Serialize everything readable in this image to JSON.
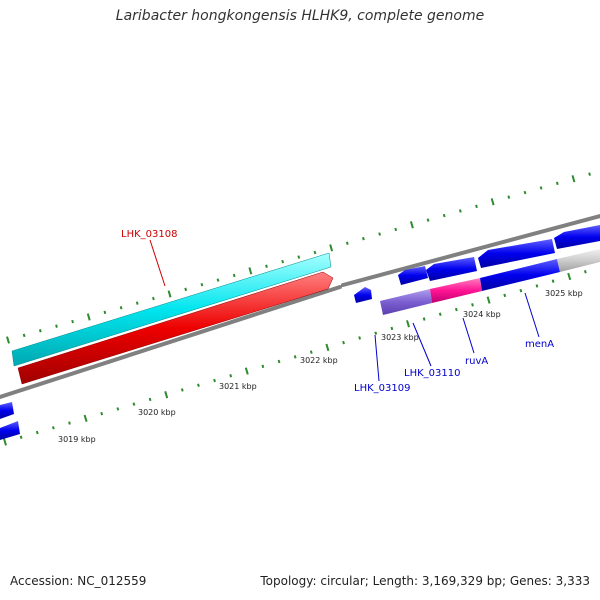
{
  "title": "Laribacter hongkongensis HLHK9, complete genome",
  "footer": {
    "accession": "Accession: NC_012559",
    "stats": "Topology: circular; Length: 3,169,329 bp; Genes: 3,333"
  },
  "scale_labels": [
    "3019 kbp",
    "3020 kbp",
    "3021 kbp",
    "3022 kbp",
    "3023 kbp",
    "3024 kbp",
    "3025 kbp"
  ],
  "gene_labels": {
    "lhk_03108": "LHK_03108",
    "lhk_03109": "LHK_03109",
    "lhk_03110": "LHK_03110",
    "ruva": "ruvA",
    "mena": "menA"
  },
  "colors": {
    "cyan_gene": "#00e5ee",
    "red_gene": "#ee0000",
    "blue_gene": "#0000ee",
    "purple_gene": "#7b5fd0",
    "pink_gene": "#ff1493",
    "grey_gene": "#c8c8c8",
    "backbone": "#808080",
    "ticks": "#2e8b2e",
    "label_red": "#cc0000",
    "label_blue": "#0000cc"
  }
}
